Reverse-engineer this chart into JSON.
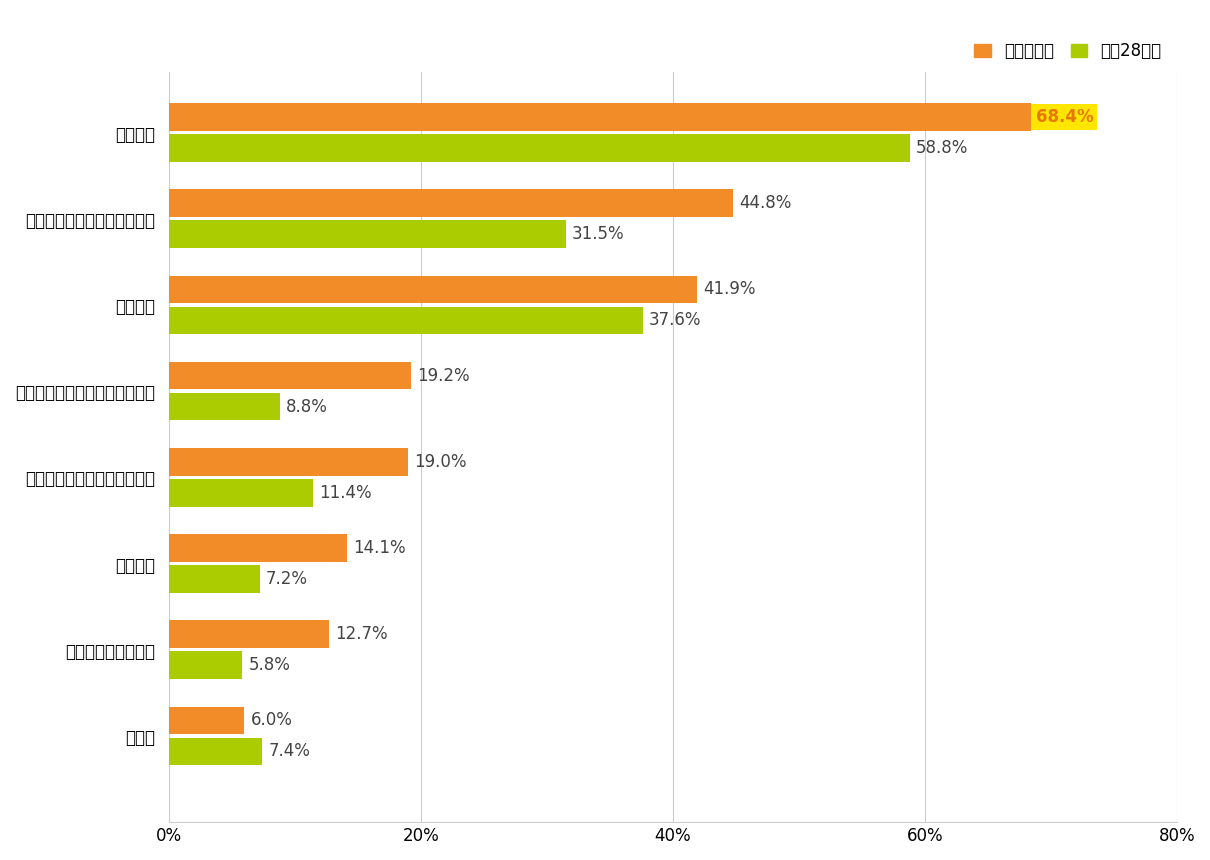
{
  "categories": [
    "内部通報",
    "上司による日常的なチェック",
    "内部監査",
    "従業員に対するアンケート調査",
    "取引先やユーザーからの情報",
    "外部監査",
    "行政機関による調査",
    "その他"
  ],
  "reiwa_values": [
    68.4,
    44.8,
    41.9,
    19.2,
    19.0,
    14.1,
    12.7,
    6.0
  ],
  "heisei_values": [
    58.8,
    31.5,
    37.6,
    8.8,
    11.4,
    7.2,
    5.8,
    7.4
  ],
  "reiwa_color": "#F28C28",
  "heisei_color": "#AACC00",
  "reiwa_label": "令和５年度",
  "heisei_label": "平成28年度",
  "reiwa_highlight_color": "#FFE600",
  "reiwa_highlight_text_color": "#E87700",
  "xlim": [
    0,
    80
  ],
  "xtick_values": [
    0,
    20,
    40,
    60,
    80
  ],
  "xtick_labels": [
    "0%",
    "20%",
    "40%",
    "60%",
    "80%"
  ],
  "bar_height": 0.32,
  "bar_gap": 0.04,
  "background_color": "#FFFFFF",
  "grid_color": "#CCCCCC",
  "label_fontsize": 12,
  "tick_fontsize": 12,
  "category_fontsize": 12,
  "legend_fontsize": 12
}
